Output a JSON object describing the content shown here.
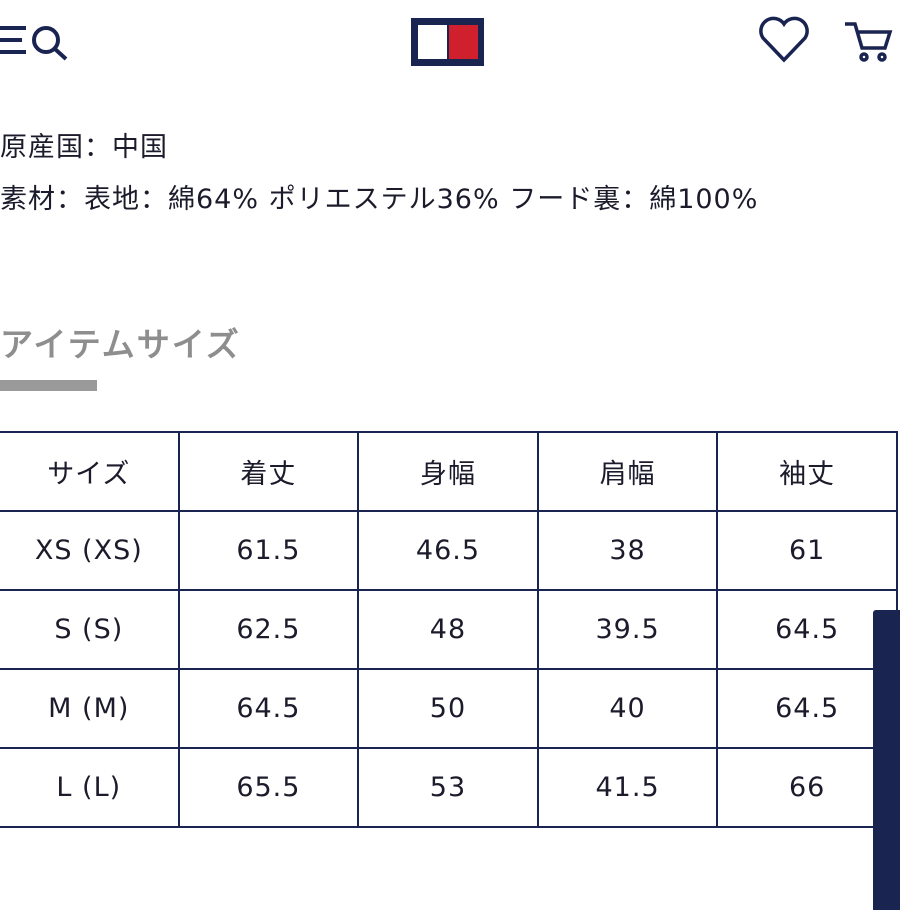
{
  "details": {
    "origin": "原産国：中国",
    "material": "素材：表地：綿64% ポリエステル36% フード裏：綿100%"
  },
  "section": {
    "title": "アイテムサイズ"
  },
  "table": {
    "header": [
      "サイズ",
      "着丈",
      "身幅",
      "肩幅",
      "袖丈"
    ],
    "rows": [
      [
        "XS (XS)",
        "61.5",
        "46.5",
        "38",
        "61"
      ],
      [
        "S (S)",
        "62.5",
        "48",
        "39.5",
        "64.5"
      ],
      [
        "M (M)",
        "64.5",
        "50",
        "40",
        "64.5"
      ],
      [
        "L (L)",
        "65.5",
        "53",
        "41.5",
        "66"
      ]
    ]
  }
}
